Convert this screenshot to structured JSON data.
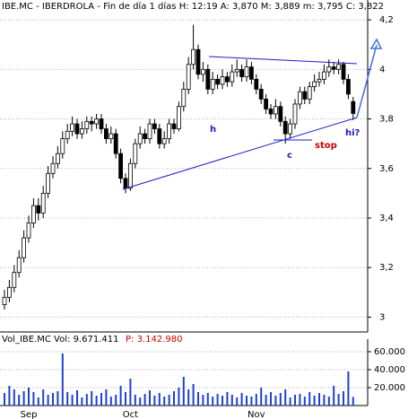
{
  "chart_data": [
    {
      "type": "candlestick",
      "title": "IBE.MC - IBERDROLA - Fin de día 1 días H: 12:19 A: 3,870 M: 3,889 m: 3,795 C: 3,822",
      "categories": [
        null,
        null,
        null,
        null,
        null,
        "Sep",
        null,
        null,
        null,
        null,
        null,
        null,
        null,
        null,
        null,
        null,
        null,
        null,
        null,
        null,
        null,
        null,
        null,
        null,
        null,
        null,
        "Oct",
        null,
        null,
        null,
        null,
        null,
        null,
        null,
        null,
        null,
        null,
        null,
        null,
        null,
        null,
        null,
        null,
        null,
        null,
        null,
        null,
        null,
        null,
        null,
        null,
        null,
        "Nov",
        null,
        null,
        null,
        null,
        null,
        null,
        null,
        null,
        null,
        null,
        null,
        null,
        null,
        null,
        null,
        null,
        null,
        null,
        null,
        null
      ],
      "open": [
        3.05,
        3.08,
        3.12,
        3.18,
        3.24,
        3.32,
        3.38,
        3.45,
        3.42,
        3.5,
        3.58,
        3.62,
        3.66,
        3.72,
        3.75,
        3.78,
        3.74,
        3.76,
        3.79,
        3.78,
        3.8,
        3.76,
        3.72,
        3.74,
        3.66,
        3.56,
        3.52,
        3.62,
        3.7,
        3.74,
        3.72,
        3.78,
        3.76,
        3.7,
        3.72,
        3.78,
        3.76,
        3.85,
        3.92,
        4.02,
        4.08,
        3.98,
        4.0,
        3.92,
        3.96,
        3.94,
        3.97,
        3.95,
        3.99,
        4.0,
        3.97,
        4.01,
        3.96,
        3.92,
        3.88,
        3.84,
        3.82,
        3.85,
        3.79,
        3.74,
        3.78,
        3.86,
        3.91,
        3.88,
        3.93,
        3.95,
        3.96,
        3.99,
        4.01,
        4.0,
        4.02,
        3.96,
        3.87
      ],
      "high": [
        3.11,
        3.15,
        3.21,
        3.27,
        3.35,
        3.41,
        3.48,
        3.48,
        3.53,
        3.61,
        3.65,
        3.69,
        3.75,
        3.78,
        3.81,
        3.8,
        3.79,
        3.81,
        3.81,
        3.82,
        3.82,
        3.78,
        3.77,
        3.76,
        3.68,
        3.58,
        3.64,
        3.72,
        3.77,
        3.76,
        3.8,
        3.8,
        3.78,
        3.75,
        3.8,
        3.8,
        3.87,
        3.95,
        4.05,
        4.18,
        4.1,
        4.03,
        4.02,
        3.99,
        3.98,
        4.0,
        3.99,
        4.02,
        4.04,
        4.02,
        4.04,
        4.03,
        3.98,
        3.94,
        3.9,
        3.86,
        3.88,
        3.87,
        3.81,
        3.8,
        3.88,
        3.93,
        3.93,
        3.95,
        3.98,
        3.99,
        4.02,
        4.04,
        4.03,
        4.04,
        4.03,
        3.98,
        3.889
      ],
      "low": [
        3.03,
        3.06,
        3.1,
        3.16,
        3.22,
        3.3,
        3.36,
        3.39,
        3.4,
        3.48,
        3.56,
        3.6,
        3.64,
        3.7,
        3.73,
        3.72,
        3.72,
        3.74,
        3.75,
        3.76,
        3.74,
        3.7,
        3.7,
        3.64,
        3.54,
        3.5,
        3.51,
        3.6,
        3.68,
        3.7,
        3.7,
        3.74,
        3.68,
        3.68,
        3.7,
        3.74,
        3.75,
        3.83,
        3.9,
        4.0,
        3.96,
        3.95,
        3.9,
        3.9,
        3.92,
        3.92,
        3.93,
        3.93,
        3.97,
        3.95,
        3.95,
        3.94,
        3.9,
        3.86,
        3.82,
        3.8,
        3.8,
        3.77,
        3.7,
        3.72,
        3.76,
        3.84,
        3.86,
        3.86,
        3.91,
        3.93,
        3.94,
        3.97,
        3.98,
        3.98,
        3.94,
        3.88,
        3.795
      ],
      "close": [
        3.08,
        3.12,
        3.18,
        3.24,
        3.32,
        3.38,
        3.45,
        3.42,
        3.5,
        3.58,
        3.62,
        3.66,
        3.72,
        3.75,
        3.78,
        3.74,
        3.76,
        3.79,
        3.78,
        3.8,
        3.76,
        3.72,
        3.74,
        3.66,
        3.56,
        3.52,
        3.62,
        3.7,
        3.74,
        3.72,
        3.78,
        3.76,
        3.7,
        3.72,
        3.78,
        3.76,
        3.85,
        3.92,
        4.02,
        4.08,
        3.98,
        4.0,
        3.92,
        3.96,
        3.94,
        3.97,
        3.95,
        3.99,
        4.0,
        3.97,
        4.01,
        3.96,
        3.92,
        3.88,
        3.84,
        3.82,
        3.85,
        3.79,
        3.74,
        3.78,
        3.86,
        3.91,
        3.88,
        3.93,
        3.95,
        3.96,
        3.99,
        4.01,
        4.0,
        4.02,
        3.96,
        3.9,
        3.822
      ],
      "up_color": "#ffffff",
      "down_color": "#000000",
      "ylim": [
        2.94,
        4.28
      ],
      "yticks": [
        3,
        {
          "value": 3.2,
          "label": "3,2"
        },
        {
          "value": 3.4,
          "label": "3,4"
        },
        {
          "value": 3.6,
          "label": "3,6"
        },
        {
          "value": 3.8,
          "label": "3,8"
        },
        4,
        {
          "value": 4.2,
          "label": "4,2"
        }
      ],
      "grid": true,
      "annotations": [
        "h",
        "c",
        "stop",
        "hi?"
      ]
    },
    {
      "type": "bar",
      "title": "Vol_IBE.MC Vol: 9.671.411",
      "subtitle": "P: 3.142.980",
      "values": [
        14000,
        22000,
        18000,
        12000,
        16000,
        20000,
        15000,
        9000,
        18000,
        12000,
        14000,
        16000,
        58000,
        15000,
        12000,
        17000,
        9000,
        13000,
        16000,
        11000,
        14000,
        18000,
        10000,
        12000,
        22000,
        15000,
        30000,
        12000,
        9000,
        13000,
        17000,
        11000,
        14000,
        10000,
        12000,
        16000,
        20000,
        32000,
        18000,
        24000,
        15000,
        12000,
        14000,
        10000,
        13000,
        11000,
        15000,
        12000,
        9000,
        14000,
        11000,
        10000,
        13000,
        20000,
        12000,
        15000,
        11000,
        14000,
        18000,
        9000,
        12000,
        13000,
        10000,
        15000,
        11000,
        14000,
        12000,
        10000,
        22000,
        13000,
        16000,
        38000,
        9671
      ],
      "color": "#1f3fd6",
      "ylim": [
        0,
        72000
      ],
      "yticks": [
        {
          "value": 20000,
          "label": "20.000"
        },
        {
          "value": 40000,
          "label": "40.000"
        },
        {
          "value": 60000,
          "label": "60.000"
        }
      ],
      "grid": true
    }
  ]
}
